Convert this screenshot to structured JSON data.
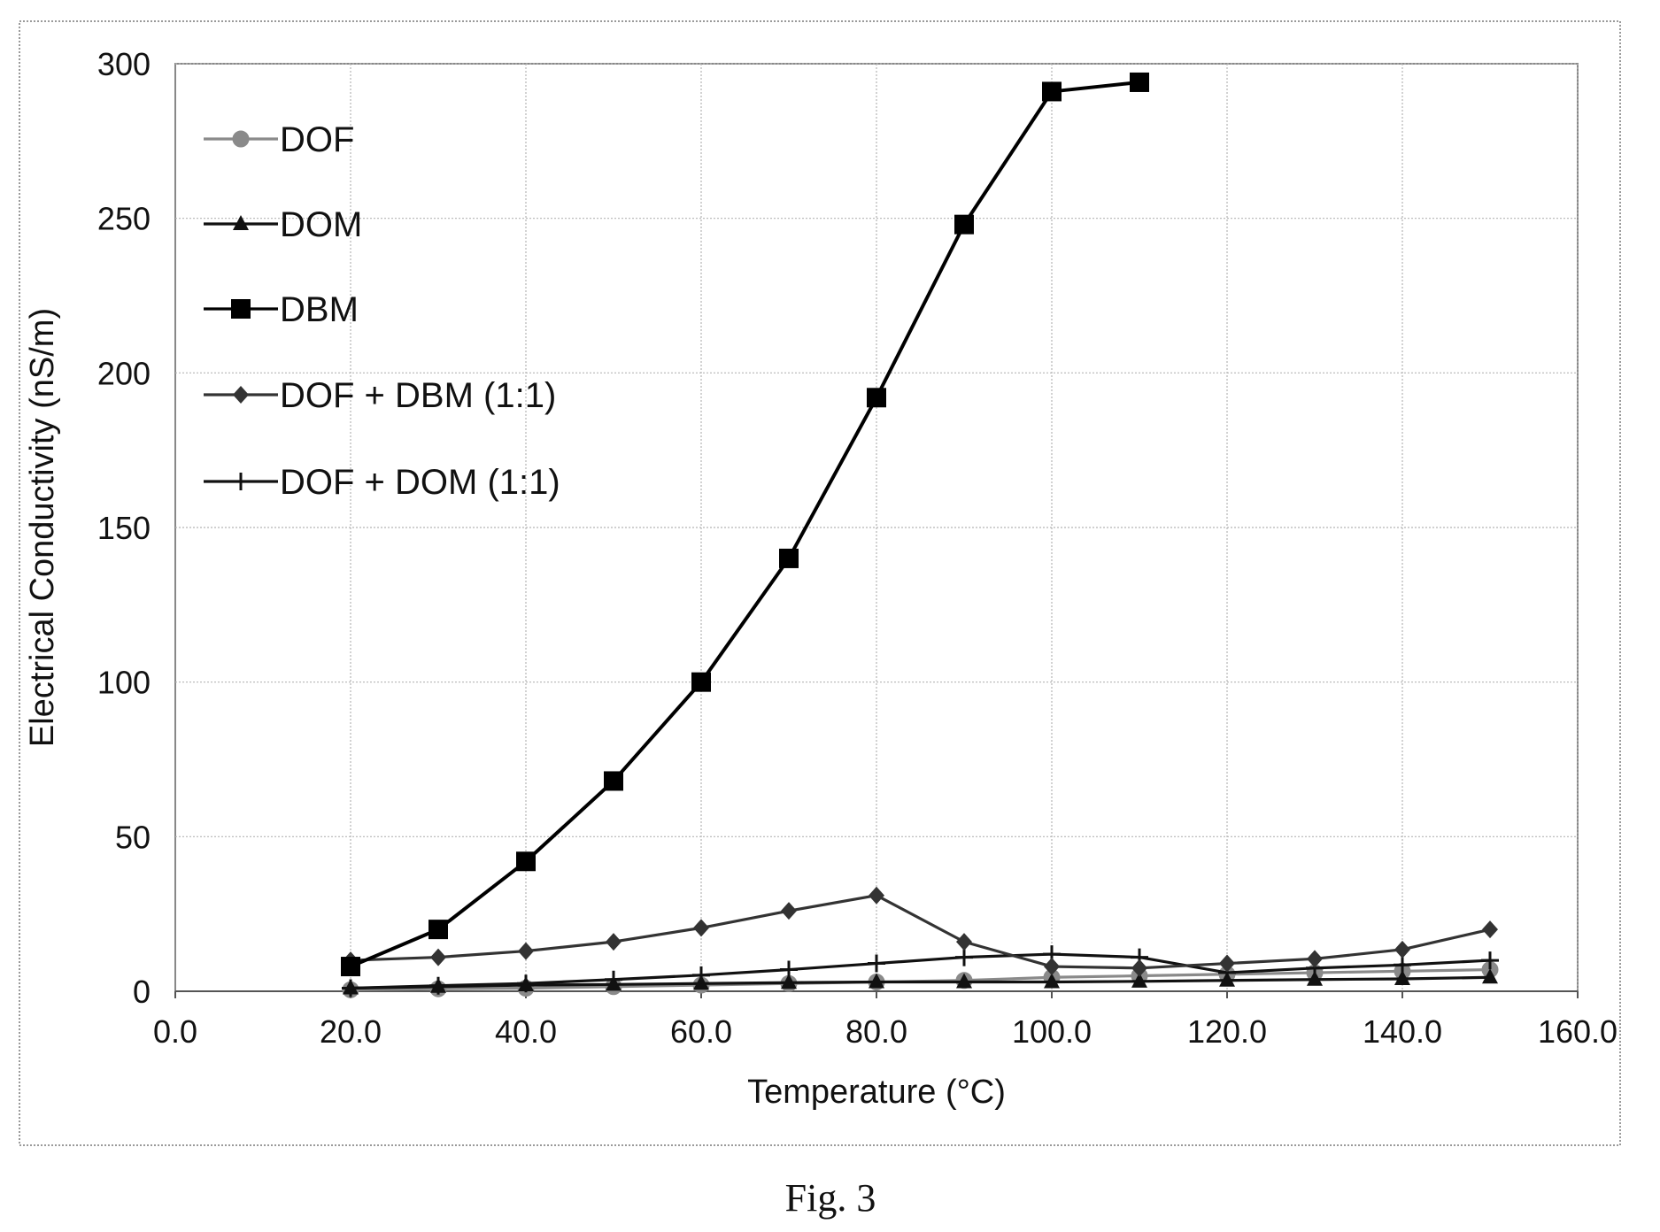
{
  "figure": {
    "caption": "Fig. 3"
  },
  "chart_data": {
    "type": "line",
    "title": "",
    "xlabel": "Temperature (°C)",
    "ylabel": "Electrical Conductivity  (nS/m)",
    "xlim": [
      0,
      160
    ],
    "ylim": [
      0,
      300
    ],
    "xticks": [
      0,
      20,
      40,
      60,
      80,
      100,
      120,
      140,
      160
    ],
    "xtick_labels": [
      "0.0",
      "20.0",
      "40.0",
      "60.0",
      "80.0",
      "100.0",
      "120.0",
      "140.0",
      "160.0"
    ],
    "yticks": [
      0,
      50,
      100,
      150,
      200,
      250,
      300
    ],
    "ytick_labels": [
      "0",
      "50",
      "100",
      "150",
      "200",
      "250",
      "300"
    ],
    "grid": true,
    "legend_position": "top-left",
    "series": [
      {
        "name": "DOF",
        "marker": "circle",
        "color": "#8a8a8a",
        "x": [
          20,
          30,
          40,
          50,
          60,
          70,
          80,
          90,
          100,
          110,
          120,
          130,
          140,
          150
        ],
        "y": [
          0.5,
          0.8,
          1.0,
          1.5,
          2.0,
          2.5,
          3.0,
          3.5,
          4.5,
          5.0,
          5.5,
          6.0,
          6.5,
          7.0
        ]
      },
      {
        "name": "DOM",
        "marker": "triangle",
        "color": "#111111",
        "x": [
          20,
          30,
          40,
          50,
          60,
          70,
          80,
          90,
          100,
          110,
          120,
          130,
          140,
          150
        ],
        "y": [
          1.0,
          1.5,
          2.0,
          2.2,
          2.5,
          2.8,
          3.0,
          3.0,
          3.0,
          3.2,
          3.5,
          3.8,
          4.0,
          4.5
        ]
      },
      {
        "name": "DBM",
        "marker": "square",
        "color": "#000000",
        "x": [
          20,
          30,
          40,
          50,
          60,
          70,
          80,
          90,
          100,
          110
        ],
        "y": [
          8,
          20,
          42,
          68,
          100,
          140,
          192,
          248,
          291,
          294
        ]
      },
      {
        "name": "DOF + DBM (1:1)",
        "marker": "diamond",
        "color": "#333333",
        "x": [
          20,
          30,
          40,
          50,
          60,
          70,
          80,
          90,
          100,
          110,
          120,
          130,
          140,
          150
        ],
        "y": [
          10,
          11,
          13,
          16,
          20.5,
          26,
          31,
          16,
          8,
          7.5,
          9,
          10.5,
          13.5,
          20
        ]
      },
      {
        "name": "DOF + DOM (1:1)",
        "marker": "plus",
        "color": "#111111",
        "x": [
          20,
          30,
          40,
          50,
          60,
          70,
          80,
          90,
          100,
          110,
          120,
          130,
          140,
          150
        ],
        "y": [
          1.0,
          1.8,
          2.5,
          3.8,
          5.2,
          7.0,
          9.0,
          11.0,
          12.0,
          11.0,
          6.0,
          7.5,
          8.5,
          10.0
        ]
      }
    ]
  }
}
